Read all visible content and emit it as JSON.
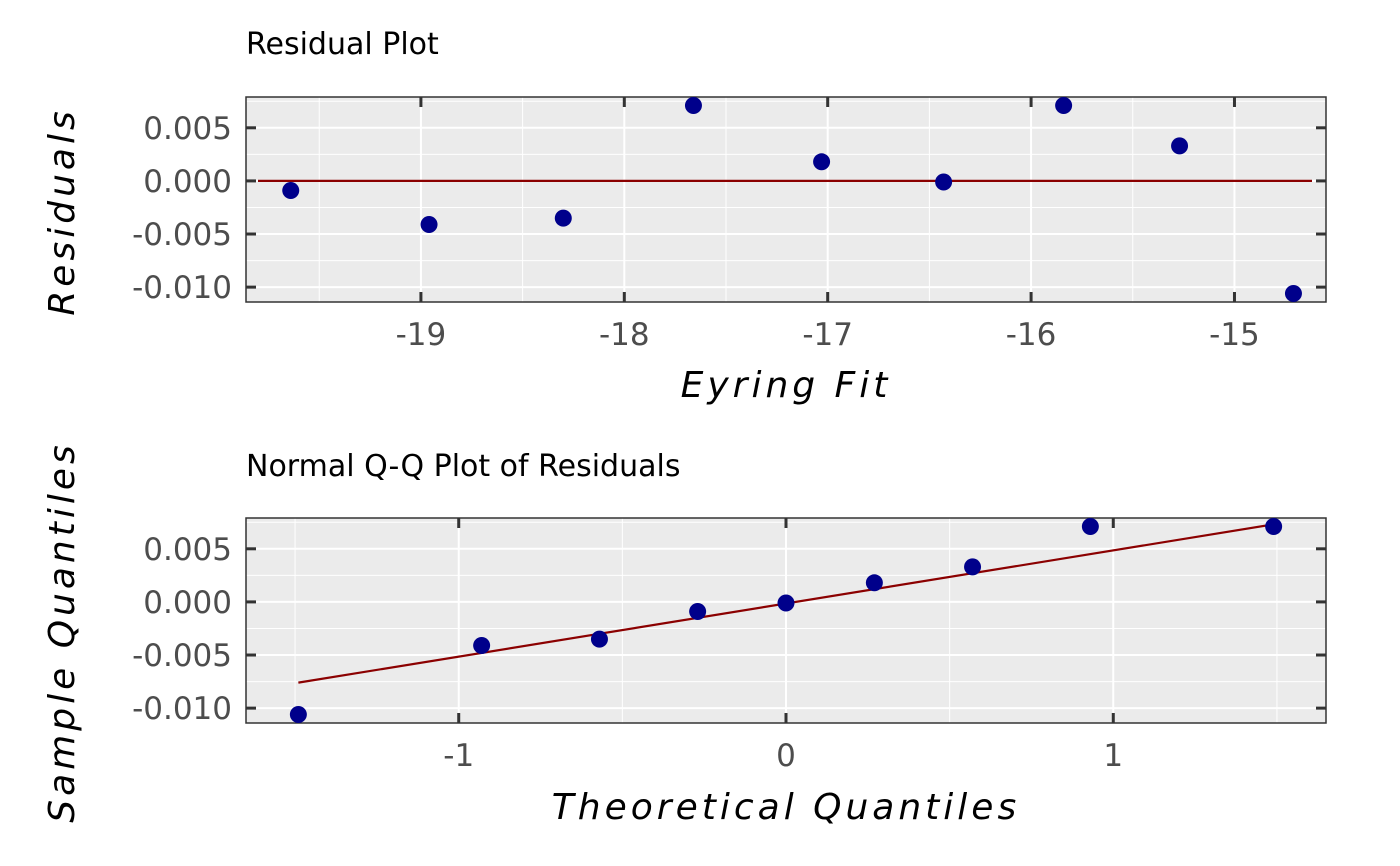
{
  "chart_data": [
    {
      "type": "scatter",
      "title": "Residual Plot",
      "xlabel": "Eyring Fit",
      "ylabel": "Residuals",
      "xlim": [
        -19.86,
        -14.55
      ],
      "ylim": [
        -0.0114,
        0.0079
      ],
      "x_ticks": [
        -19,
        -18,
        -17,
        -16,
        -15
      ],
      "x_tick_labels": [
        "-19",
        "-18",
        "-17",
        "-16",
        "-15"
      ],
      "y_ticks": [
        0.005,
        0.0,
        -0.005,
        -0.01
      ],
      "y_tick_labels": [
        "0.005",
        "0.000",
        "-0.005",
        "-0.010"
      ],
      "grid": true,
      "points": [
        {
          "x": -19.64,
          "y": -0.0009
        },
        {
          "x": -18.96,
          "y": -0.0041
        },
        {
          "x": -18.3,
          "y": -0.0035
        },
        {
          "x": -17.66,
          "y": 0.0071
        },
        {
          "x": -17.03,
          "y": 0.0018
        },
        {
          "x": -16.43,
          "y": -0.0001
        },
        {
          "x": -15.84,
          "y": 0.0071
        },
        {
          "x": -15.27,
          "y": 0.0033
        },
        {
          "x": -14.71,
          "y": -0.0106
        }
      ],
      "reference_line": {
        "y": 0.0
      },
      "point_color": "#00008b",
      "line_color": "#8b0000"
    },
    {
      "type": "scatter",
      "title": "Normal Q-Q Plot of Residuals",
      "xlabel": "Theoretical Quantiles",
      "ylabel": "Sample Quantiles",
      "xlim": [
        -1.65,
        1.65
      ],
      "ylim": [
        -0.0114,
        0.0079
      ],
      "x_ticks": [
        -1,
        0,
        1
      ],
      "x_tick_labels": [
        "-1",
        "0",
        "1"
      ],
      "y_ticks": [
        0.005,
        0.0,
        -0.005,
        -0.01
      ],
      "y_tick_labels": [
        "0.005",
        "0.000",
        "-0.005",
        "-0.010"
      ],
      "grid": true,
      "points": [
        {
          "x": -1.49,
          "y": -0.0106
        },
        {
          "x": -0.93,
          "y": -0.0041
        },
        {
          "x": -0.57,
          "y": -0.0035
        },
        {
          "x": -0.27,
          "y": -0.0009
        },
        {
          "x": 0.0,
          "y": -0.0001
        },
        {
          "x": 0.27,
          "y": 0.0018
        },
        {
          "x": 0.57,
          "y": 0.0033
        },
        {
          "x": 0.93,
          "y": 0.0071
        },
        {
          "x": 1.49,
          "y": 0.0071
        }
      ],
      "reference_line": {
        "x": [
          -1.49,
          1.49
        ],
        "y": [
          -0.0076,
          0.0073
        ]
      },
      "point_color": "#00008b",
      "line_color": "#8b0000"
    }
  ]
}
